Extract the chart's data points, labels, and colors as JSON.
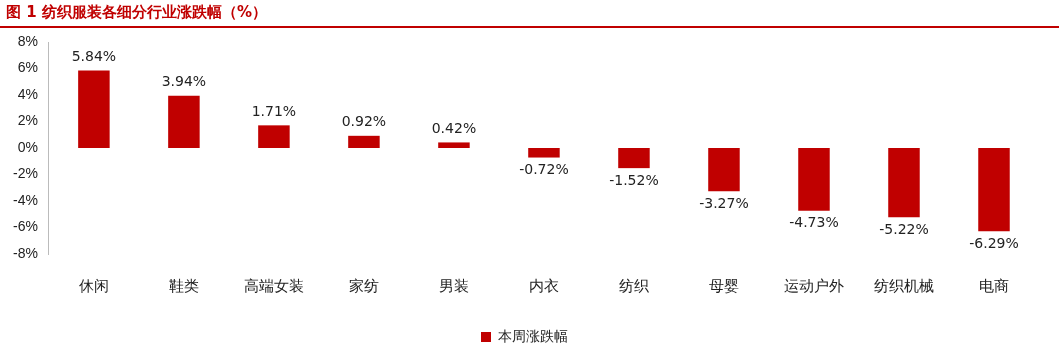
{
  "chart_data": {
    "type": "bar",
    "title": "图 1 纺织服装各细分行业涨跌幅（%）",
    "categories": [
      "休闲",
      "鞋类",
      "高端女装",
      "家纺",
      "男装",
      "内衣",
      "纺织",
      "母婴",
      "运动户外",
      "纺织机械",
      "电商"
    ],
    "series": [
      {
        "name": "本周涨跌幅",
        "color": "#c00000",
        "values": [
          5.84,
          3.94,
          1.71,
          0.92,
          0.42,
          -0.72,
          -1.52,
          -3.27,
          -4.73,
          -5.22,
          -6.29
        ],
        "value_labels": [
          "5.84%",
          "3.94%",
          "1.71%",
          "0.92%",
          "0.42%",
          "-0.72%",
          "-1.52%",
          "-3.27%",
          "-4.73%",
          "-5.22%",
          "-6.29%"
        ]
      }
    ],
    "ylim": [
      -8,
      8
    ],
    "yticks": [
      {
        "value": -8,
        "label": "-8%"
      },
      {
        "value": -6,
        "label": "-6%"
      },
      {
        "value": -4,
        "label": "-4%"
      },
      {
        "value": -2,
        "label": "-2%"
      },
      {
        "value": 0,
        "label": "0%"
      },
      {
        "value": 2,
        "label": "2%"
      },
      {
        "value": 4,
        "label": "4%"
      },
      {
        "value": 6,
        "label": "6%"
      },
      {
        "value": 8,
        "label": "8%"
      }
    ],
    "grid": false,
    "legend": "bottom"
  }
}
